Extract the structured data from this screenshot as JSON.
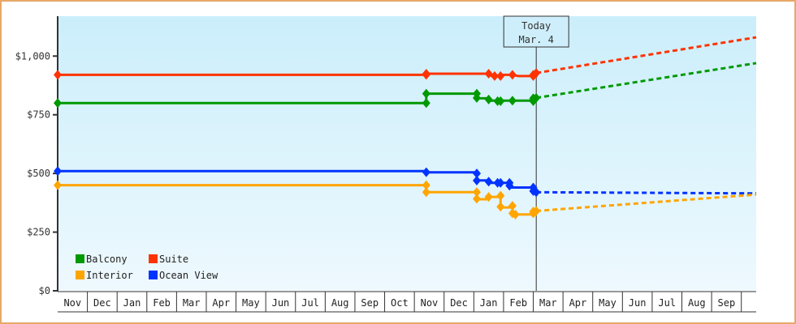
{
  "chart_data": {
    "type": "line",
    "title": "",
    "xlabel": "",
    "ylabel": "",
    "ylim": [
      0,
      1170
    ],
    "y_ticks": [
      {
        "value": 0,
        "label": "$0"
      },
      {
        "value": 250,
        "label": "$250"
      },
      {
        "value": 500,
        "label": "$500"
      },
      {
        "value": 750,
        "label": "$750"
      },
      {
        "value": 1000,
        "label": "$1,000"
      }
    ],
    "x_months": [
      "Nov",
      "Dec",
      "Jan",
      "Feb",
      "Mar",
      "Apr",
      "May",
      "Jun",
      "Jul",
      "Aug",
      "Sep",
      "Oct",
      "Nov",
      "Dec",
      "Jan",
      "Feb",
      "Mar",
      "Apr",
      "May",
      "Jun",
      "Jul",
      "Aug",
      "Sep"
    ],
    "today_marker": {
      "line1": "Today",
      "line2": "Mar. 4",
      "x_month_index": 16.1
    },
    "legend": [
      {
        "name": "Balcony",
        "color": "#009900"
      },
      {
        "name": "Suite",
        "color": "#ff3300"
      },
      {
        "name": "Interior",
        "color": "#ffa500"
      },
      {
        "name": "Ocean View",
        "color": "#0033ff"
      }
    ],
    "grid": false,
    "series": [
      {
        "name": "Suite",
        "color": "#ff3300",
        "points": [
          [
            0,
            920
          ],
          [
            12.4,
            920
          ],
          [
            12.4,
            925
          ],
          [
            14.5,
            925
          ],
          [
            14.6,
            915
          ],
          [
            14.9,
            915
          ],
          [
            15.0,
            920
          ],
          [
            15.3,
            920
          ],
          [
            15.5,
            915
          ],
          [
            16.1,
            915
          ],
          [
            16.1,
            925
          ],
          [
            16.1,
            928
          ]
        ],
        "markers": [
          [
            0,
            920
          ],
          [
            12.4,
            920
          ],
          [
            12.4,
            925
          ],
          [
            14.5,
            925
          ],
          [
            14.7,
            915
          ],
          [
            14.9,
            915
          ],
          [
            15.3,
            920
          ],
          [
            16.0,
            920
          ],
          [
            16.0,
            915
          ],
          [
            16.1,
            928
          ]
        ],
        "projection": [
          [
            16.1,
            928
          ],
          [
            23.5,
            1080
          ]
        ]
      },
      {
        "name": "Balcony",
        "color": "#009900",
        "points": [
          [
            0,
            800
          ],
          [
            12.4,
            800
          ],
          [
            12.4,
            840
          ],
          [
            14.1,
            840
          ],
          [
            14.1,
            820
          ],
          [
            14.5,
            820
          ],
          [
            14.5,
            810
          ],
          [
            15.3,
            810
          ],
          [
            16.0,
            810
          ],
          [
            16.0,
            820
          ],
          [
            16.1,
            820
          ]
        ],
        "markers": [
          [
            0,
            800
          ],
          [
            12.4,
            800
          ],
          [
            12.4,
            840
          ],
          [
            14.1,
            840
          ],
          [
            14.1,
            822
          ],
          [
            14.5,
            815
          ],
          [
            14.8,
            808
          ],
          [
            14.9,
            808
          ],
          [
            15.3,
            810
          ],
          [
            16.0,
            808
          ],
          [
            16.0,
            820
          ],
          [
            16.1,
            822
          ]
        ],
        "projection": [
          [
            16.1,
            822
          ],
          [
            23.5,
            970
          ]
        ]
      },
      {
        "name": "Ocean View",
        "color": "#0033ff",
        "points": [
          [
            0,
            510
          ],
          [
            12.4,
            510
          ],
          [
            12.4,
            505
          ],
          [
            14.1,
            505
          ],
          [
            14.1,
            470
          ],
          [
            14.5,
            470
          ],
          [
            14.5,
            460
          ],
          [
            15.2,
            460
          ],
          [
            15.2,
            440
          ],
          [
            16.0,
            440
          ],
          [
            16.0,
            420
          ],
          [
            16.1,
            420
          ]
        ],
        "markers": [
          [
            0,
            510
          ],
          [
            12.4,
            505
          ],
          [
            14.1,
            500
          ],
          [
            14.1,
            470
          ],
          [
            14.5,
            465
          ],
          [
            14.8,
            460
          ],
          [
            14.9,
            460
          ],
          [
            15.2,
            460
          ],
          [
            15.2,
            448
          ],
          [
            16.0,
            440
          ],
          [
            16.0,
            425
          ],
          [
            16.1,
            420
          ]
        ],
        "projection": [
          [
            16.1,
            420
          ],
          [
            23.5,
            415
          ]
        ]
      },
      {
        "name": "Interior",
        "color": "#ffa500",
        "points": [
          [
            0,
            450
          ],
          [
            12.4,
            450
          ],
          [
            12.4,
            420
          ],
          [
            14.1,
            420
          ],
          [
            14.1,
            390
          ],
          [
            14.5,
            390
          ],
          [
            14.5,
            400
          ],
          [
            14.9,
            400
          ],
          [
            14.9,
            355
          ],
          [
            15.3,
            355
          ],
          [
            15.3,
            325
          ],
          [
            16.0,
            325
          ],
          [
            16.0,
            340
          ],
          [
            16.1,
            340
          ]
        ],
        "markers": [
          [
            0,
            450
          ],
          [
            12.4,
            450
          ],
          [
            12.4,
            420
          ],
          [
            14.1,
            420
          ],
          [
            14.1,
            392
          ],
          [
            14.5,
            400
          ],
          [
            14.9,
            405
          ],
          [
            14.9,
            358
          ],
          [
            15.3,
            362
          ],
          [
            15.3,
            330
          ],
          [
            15.4,
            325
          ],
          [
            16.0,
            330
          ],
          [
            16.0,
            338
          ],
          [
            16.1,
            340
          ]
        ],
        "projection": [
          [
            16.1,
            340
          ],
          [
            23.5,
            410
          ]
        ]
      }
    ]
  }
}
